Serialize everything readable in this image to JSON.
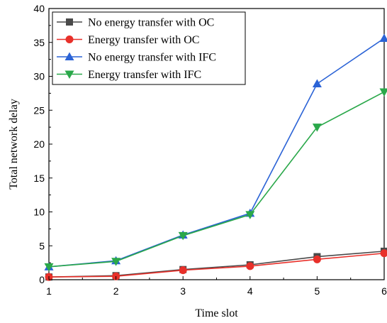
{
  "chart_data": {
    "type": "line",
    "xlabel": "Time slot",
    "ylabel": "Total network delay",
    "x": [
      1,
      2,
      3,
      4,
      5,
      6
    ],
    "xlim": [
      1,
      6
    ],
    "ylim": [
      0,
      40
    ],
    "xticks": [
      "1",
      "2",
      "3",
      "4",
      "5",
      "6"
    ],
    "yticks": [
      "0",
      "5",
      "10",
      "15",
      "20",
      "25",
      "30",
      "35",
      "40"
    ],
    "grid": false,
    "legend_position": "top-left",
    "series": [
      {
        "name": "No energy transfer with OC",
        "values": [
          0.4,
          0.6,
          1.5,
          2.2,
          3.4,
          4.2
        ],
        "color": "#4a4a4a",
        "marker": "square"
      },
      {
        "name": "Energy transfer with OC",
        "values": [
          0.4,
          0.5,
          1.4,
          2.0,
          3.0,
          3.9
        ],
        "color": "#e8302a",
        "marker": "circle"
      },
      {
        "name": "No energy transfer with IFC",
        "values": [
          1.9,
          2.8,
          6.6,
          9.8,
          28.9,
          35.6
        ],
        "color": "#2b63d6",
        "marker": "triangle-up"
      },
      {
        "name": "Energy transfer with IFC",
        "values": [
          1.9,
          2.7,
          6.5,
          9.6,
          22.5,
          27.7
        ],
        "color": "#2aa84a",
        "marker": "triangle-down"
      }
    ]
  }
}
